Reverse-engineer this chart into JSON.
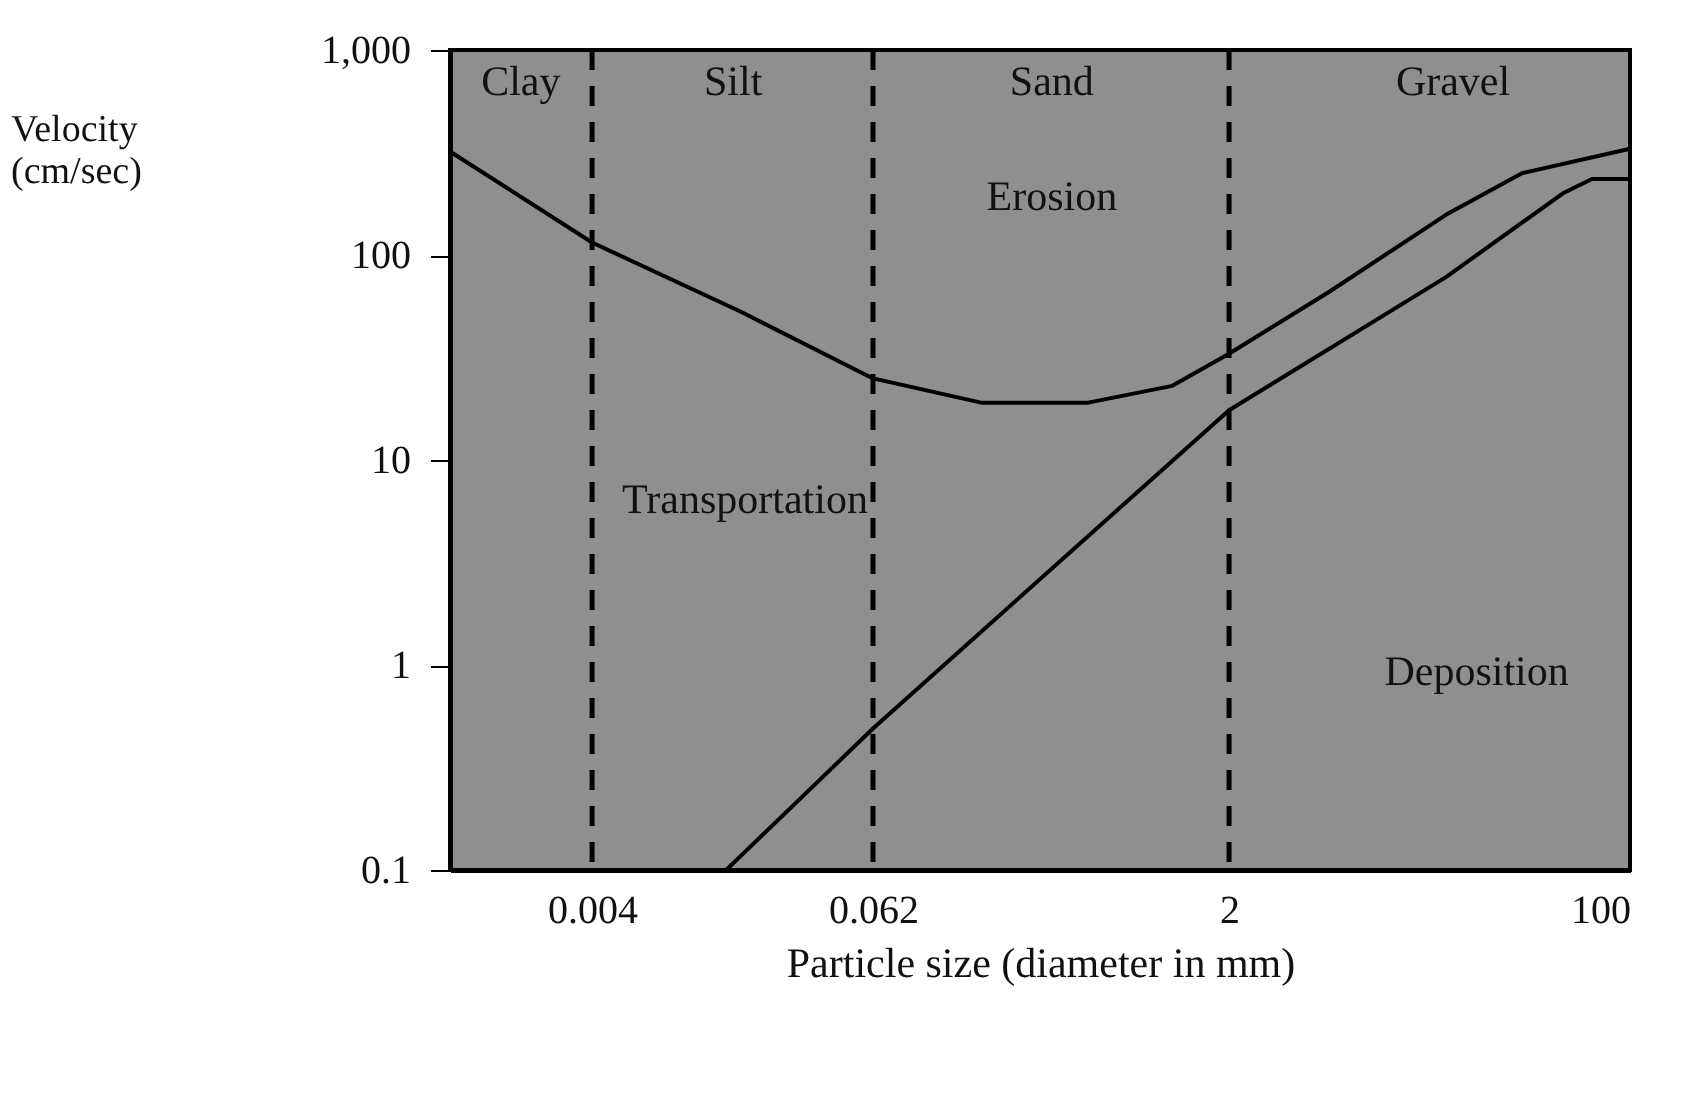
{
  "chart_data": {
    "type": "line",
    "xlabel": "Particle size (diameter in mm)",
    "ylabel": "Velocity (cm/sec)",
    "log": "xy",
    "grid": false,
    "marker": "none",
    "line_style": "solid",
    "xlim": [
      0.001,
      100
    ],
    "xticks": [
      0.004,
      0.062,
      2,
      100
    ],
    "ylim": [
      0.1,
      1000
    ],
    "yticks": [
      0.1,
      1,
      10,
      100,
      {
        "value": 1000,
        "label": "1,000"
      }
    ],
    "series": [
      {
        "color": "#000000",
        "x": [
          0.001,
          0.004,
          0.017,
          0.062,
          0.18,
          0.5,
          1.15,
          2,
          5.3,
          16.6,
          35,
          100
        ],
        "values": [
          320,
          115,
          53,
          25,
          19,
          19,
          23,
          33,
          66,
          157,
          251,
          330
        ]
      },
      {
        "color": "#000000",
        "x": [
          0.0148,
          0.062,
          2,
          16.6,
          52,
          69,
          100
        ],
        "values": [
          0.1,
          0.49,
          17.5,
          78,
          200,
          235,
          235
        ]
      }
    ],
    "ref_lines": [
      {
        "axis": "x",
        "value": 0.004,
        "color": "#000000",
        "line_style": "dashed"
      },
      {
        "axis": "x",
        "value": 0.062,
        "color": "#000000",
        "line_style": "dashed"
      },
      {
        "axis": "x",
        "value": 2,
        "color": "#000000",
        "line_style": "dashed"
      }
    ],
    "annotations": [
      "Clay",
      "Silt",
      "Sand",
      "Gravel",
      "Erosion",
      "Transportation",
      "Deposition"
    ]
  }
}
